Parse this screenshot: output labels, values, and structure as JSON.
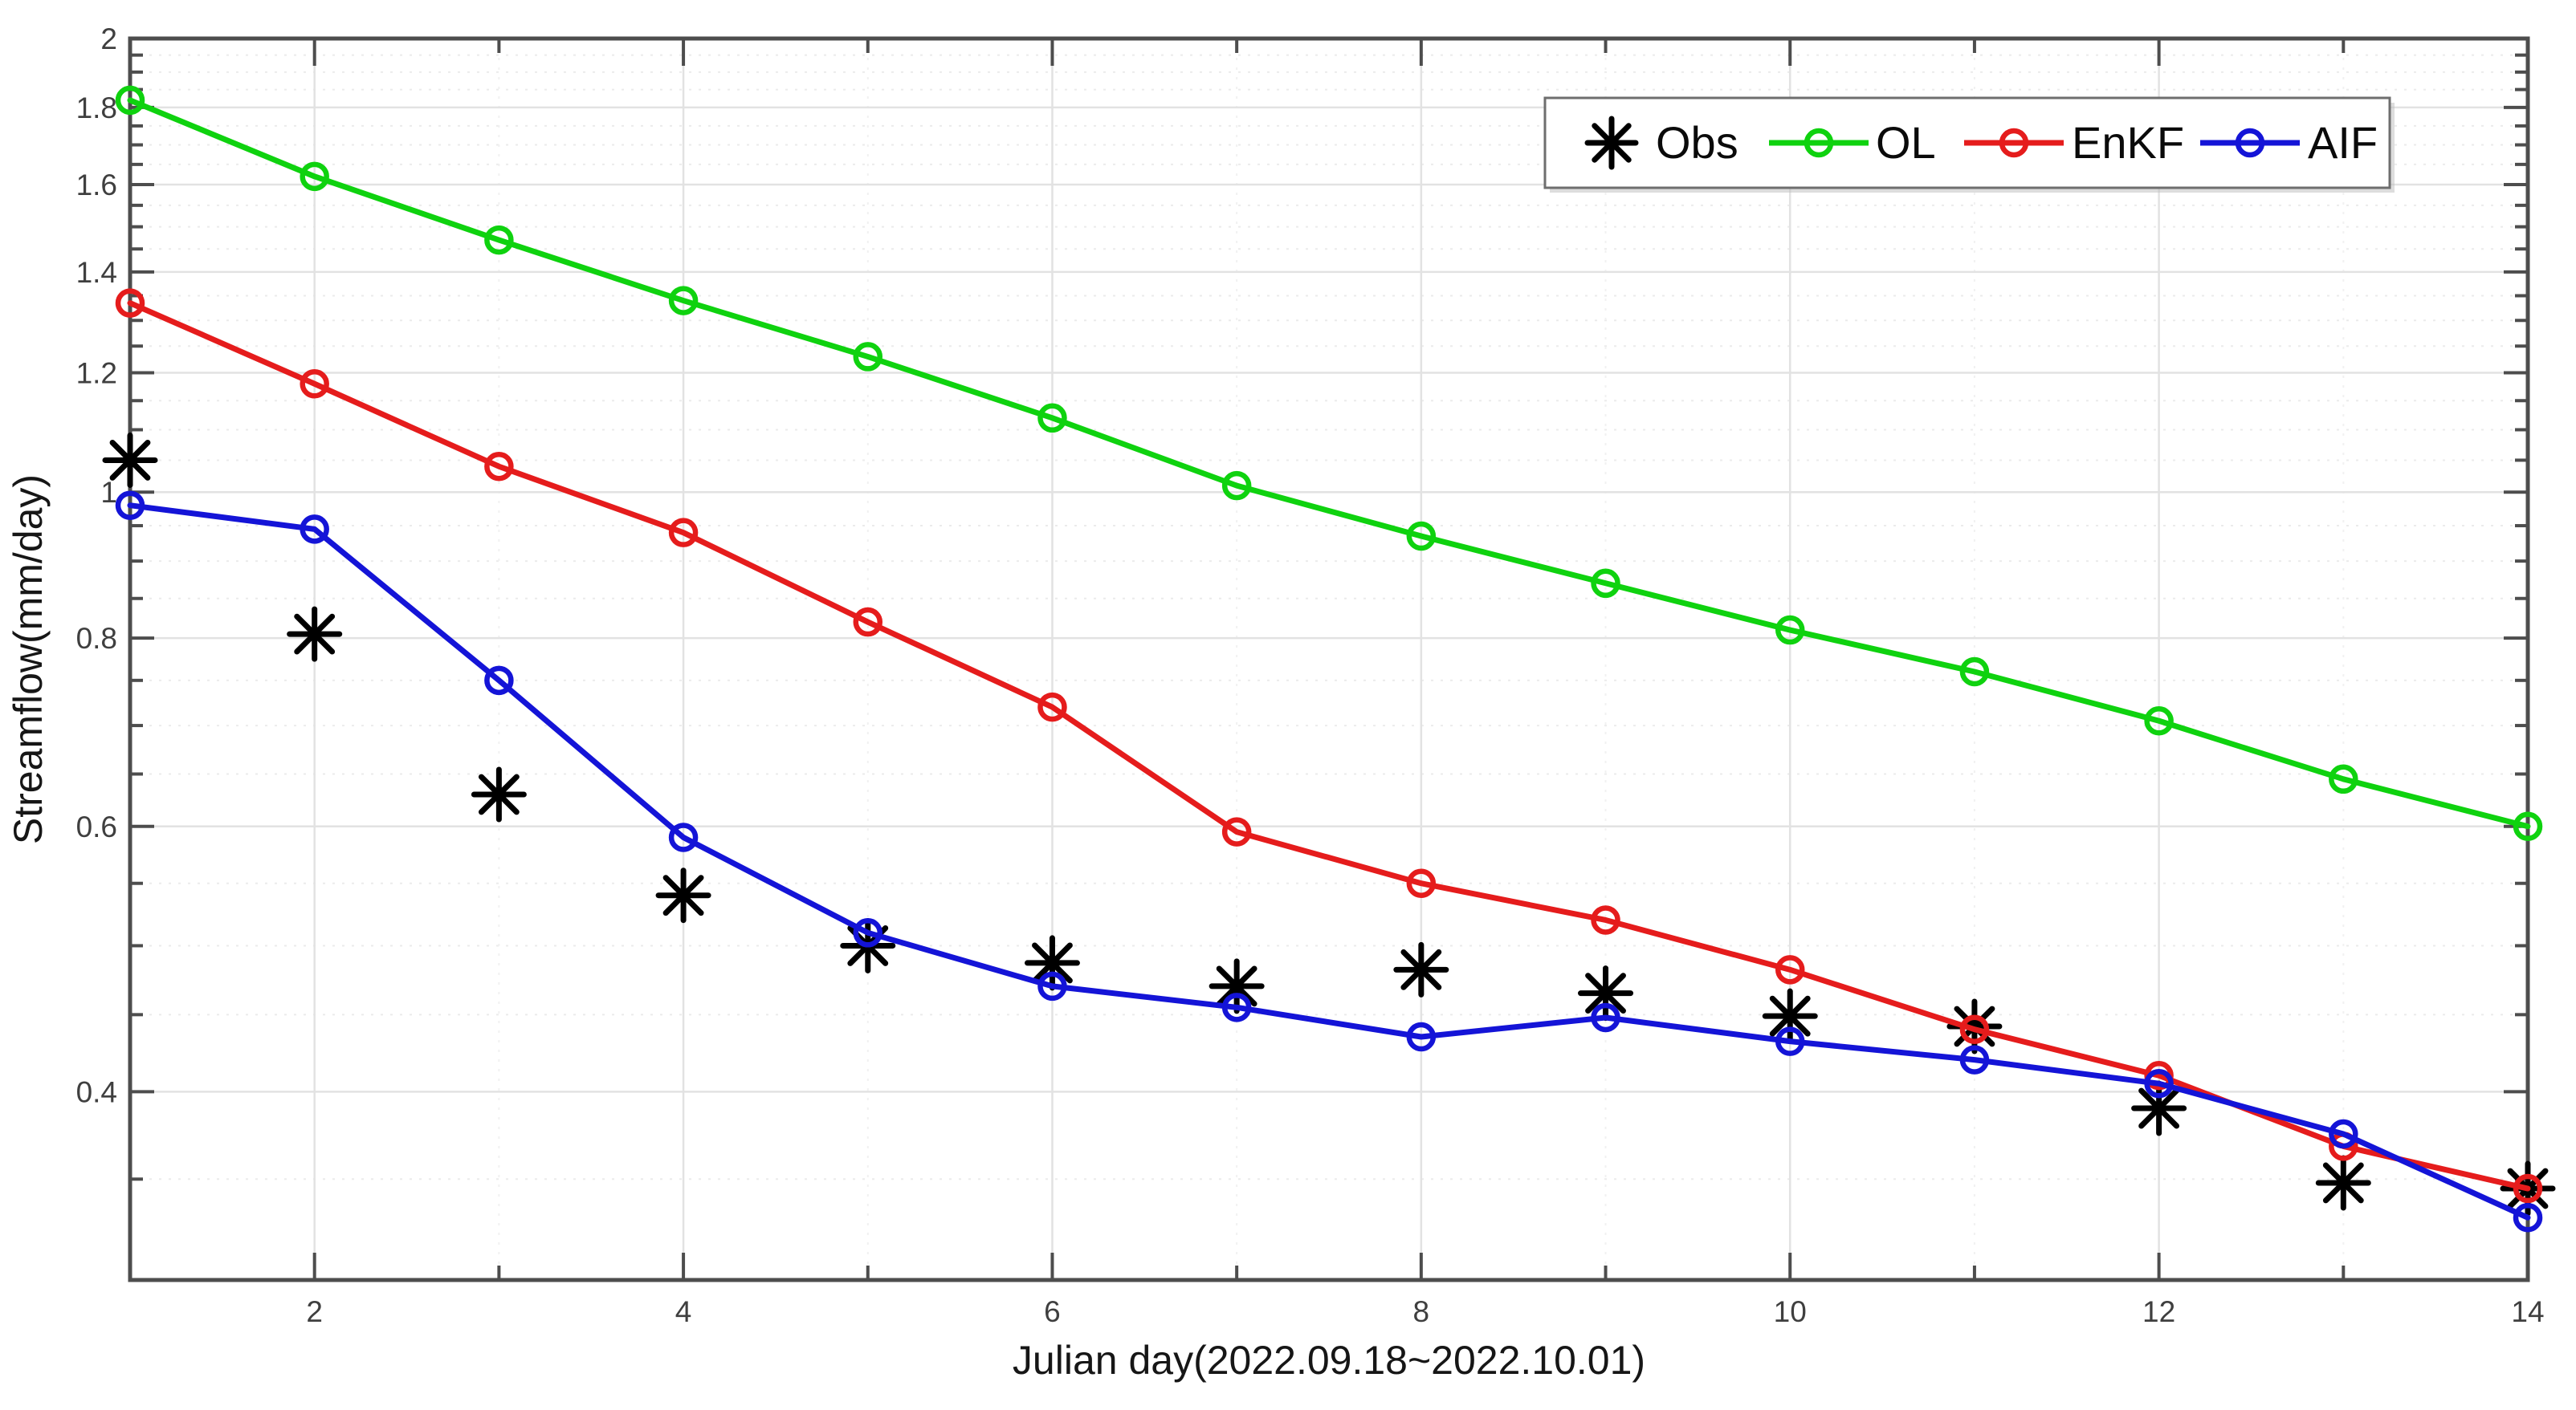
{
  "chart_data": {
    "type": "line",
    "title": "",
    "xlabel": "Julian day(2022.09.18~2022.10.01)",
    "ylabel": "Streamflow(mm/day)",
    "yscale": "log",
    "xlim": [
      1,
      14
    ],
    "ylim": [
      0.3,
      2
    ],
    "grid": "on",
    "x": [
      1,
      2,
      3,
      4,
      5,
      6,
      7,
      8,
      9,
      10,
      11,
      12,
      13,
      14
    ],
    "xticks": {
      "values": [
        2,
        4,
        6,
        8,
        10,
        12,
        14
      ],
      "labels": [
        "2",
        "4",
        "6",
        "8",
        "10",
        "12",
        "14"
      ]
    },
    "xminor": [
      3,
      5,
      7,
      9,
      11,
      13
    ],
    "yticks": {
      "values": [
        2,
        1.8,
        1.6,
        1.4,
        1.2,
        1,
        0.8,
        0.6,
        0.4
      ],
      "labels": [
        "2",
        "1.8",
        "1.6",
        "1.4",
        "1.2",
        "1",
        "0.8",
        "0.6",
        "0.4"
      ]
    },
    "series": [
      {
        "name": "Obs",
        "color": "#000000",
        "marker": "asterisk",
        "line": "none",
        "values": [
          1.05,
          0.805,
          0.63,
          0.54,
          0.5,
          0.487,
          0.47,
          0.482,
          0.465,
          0.449,
          0.442,
          0.39,
          0.348,
          0.345
        ]
      },
      {
        "name": "OL",
        "color": "#0fd20f",
        "marker": "circle",
        "line": "solid",
        "values": [
          1.82,
          1.62,
          1.47,
          1.34,
          1.23,
          1.12,
          1.01,
          0.935,
          0.87,
          0.81,
          0.76,
          0.705,
          0.645,
          0.6
        ]
      },
      {
        "name": "EnKF",
        "color": "#e51c1c",
        "marker": "circle",
        "line": "solid",
        "values": [
          1.335,
          1.18,
          1.04,
          0.94,
          0.82,
          0.72,
          0.595,
          0.55,
          0.52,
          0.482,
          0.44,
          0.41,
          0.368,
          0.345
        ]
      },
      {
        "name": "AIF",
        "color": "#1414d7",
        "marker": "circle",
        "line": "solid",
        "values": [
          0.98,
          0.945,
          0.75,
          0.59,
          0.51,
          0.47,
          0.455,
          0.435,
          0.448,
          0.432,
          0.42,
          0.405,
          0.375,
          0.33
        ]
      }
    ],
    "legend": {
      "position": "top-right",
      "entries": [
        "Obs",
        "OL",
        "EnKF",
        "AIF"
      ]
    },
    "colors": {
      "frame": "#4d4d4d",
      "grid_major": "#e2e2e2",
      "grid_minor": "#ebebeb",
      "tick": "#4d4d4d",
      "legend_border": "#6e6e6e",
      "background": "#ffffff"
    }
  }
}
